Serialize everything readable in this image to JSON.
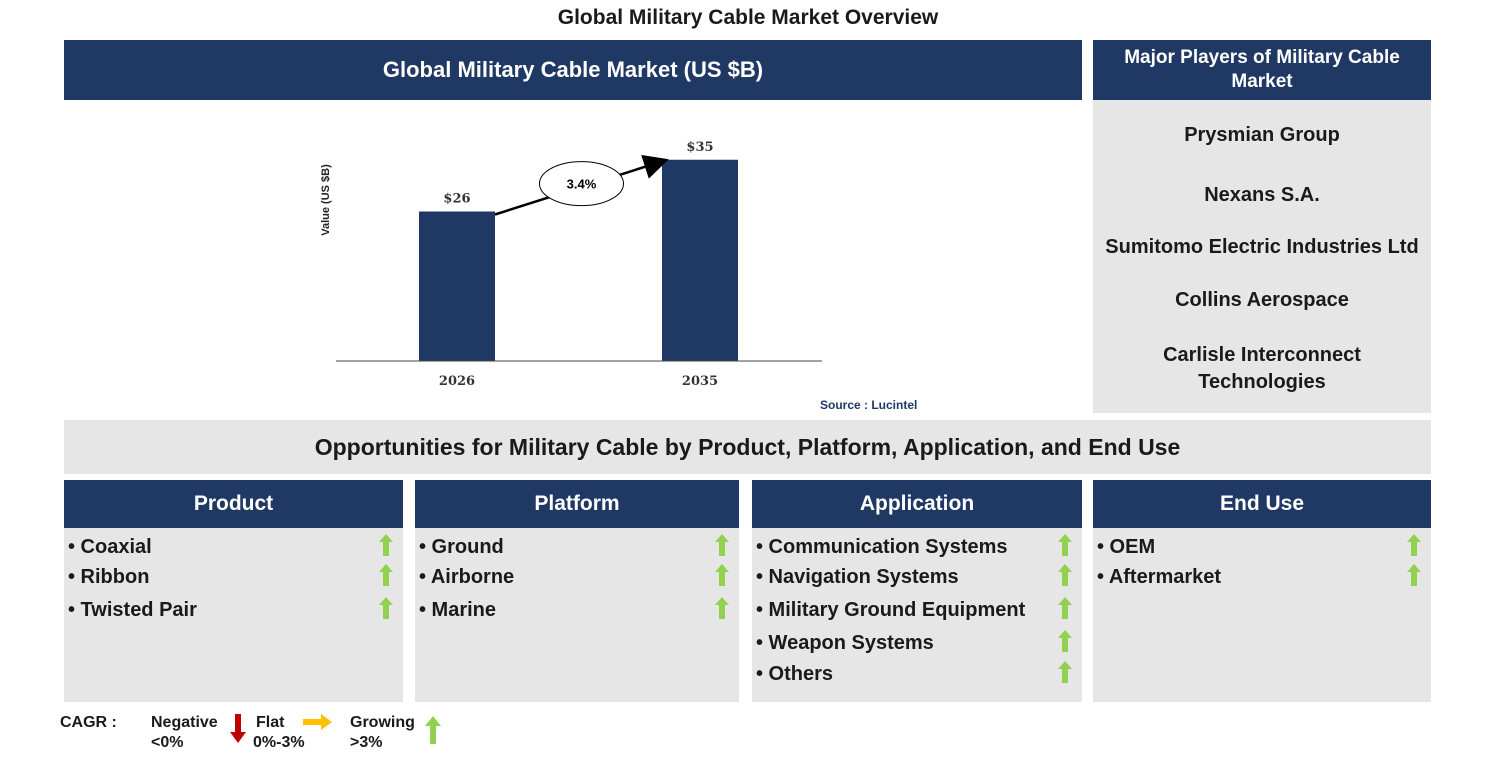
{
  "title": "Global Military Cable Market Overview",
  "chart_panel": {
    "heading": "Global Military Cable Market (US $B)",
    "source": "Source : Lucintel"
  },
  "chart_data": {
    "type": "bar",
    "categories": [
      "2026",
      "2035"
    ],
    "values": [
      26,
      35
    ],
    "value_labels": [
      "$26",
      "$35"
    ],
    "ylabel": "Value (US $B)",
    "ylim": [
      0,
      40
    ],
    "grid": false,
    "annotation": {
      "label": "3.4%",
      "type": "arrow",
      "from": "2026",
      "to": "2035"
    },
    "colors": {
      "bar": "#1f3864"
    }
  },
  "players": {
    "heading": "Major Players of Military Cable Market",
    "items": [
      "Prysmian Group",
      "Nexans S.A.",
      "Sumitomo Electric Industries Ltd",
      "Collins Aerospace",
      "Carlisle Interconnect Technologies"
    ]
  },
  "opportunities": {
    "heading": "Opportunities for Military Cable by Product, Platform, Application, and End Use"
  },
  "categories": [
    {
      "title": "Product",
      "items": [
        "• Coaxial",
        "• Ribbon",
        "• Twisted Pair"
      ]
    },
    {
      "title": "Platform",
      "items": [
        "• Ground",
        "• Airborne",
        "• Marine"
      ]
    },
    {
      "title": "Application",
      "items": [
        "• Communication Systems",
        "• Navigation Systems",
        "• Military Ground Equipment",
        "• Weapon Systems",
        "• Others"
      ]
    },
    {
      "title": "End Use",
      "items": [
        "• OEM",
        "• Aftermarket"
      ]
    }
  ],
  "trend_icon": "green-up-arrow-icon",
  "legend": {
    "label": "CAGR :",
    "negative": {
      "name": "Negative",
      "range": "<0%",
      "icon": "red-down-arrow-icon"
    },
    "flat": {
      "name": "Flat",
      "range": "0%-3%",
      "icon": "orange-right-arrow-icon"
    },
    "growing": {
      "name": "Growing",
      "range": ">3%",
      "icon": "green-up-arrow-icon"
    }
  },
  "colors": {
    "navy": "#1f3864",
    "panel_gray": "#e7e6e6",
    "growth_green": "#92d050",
    "negative_red": "#c00000",
    "flat_orange": "#ffc000",
    "source_blue": "#1f3864"
  }
}
